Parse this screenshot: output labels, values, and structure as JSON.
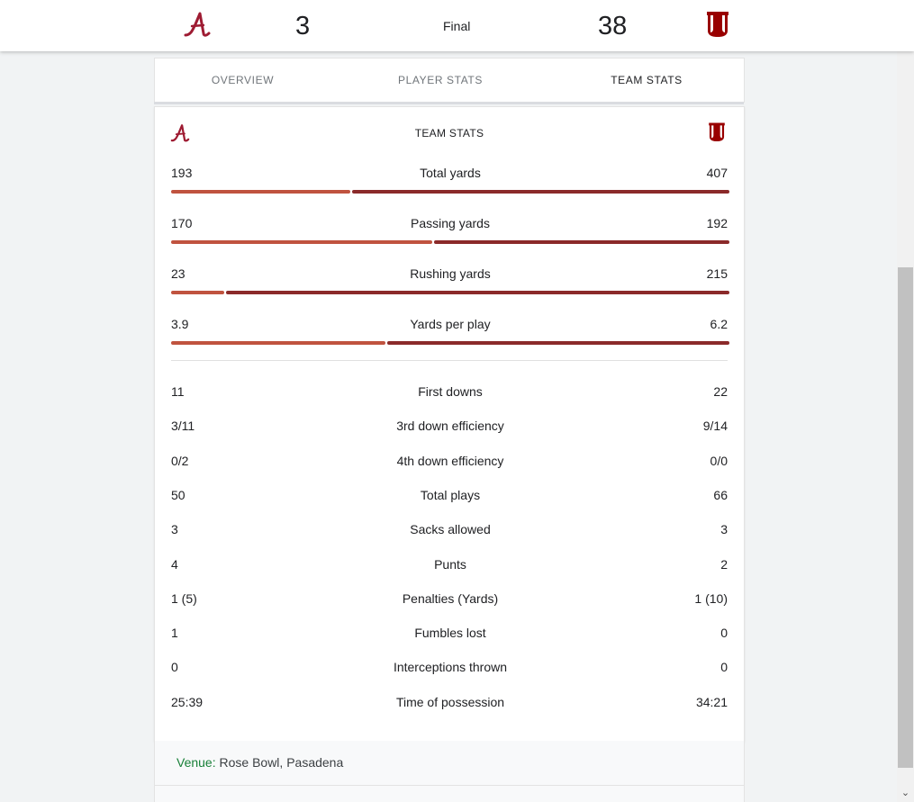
{
  "scoreboard": {
    "home_logo": "alabama-script-a-logo",
    "home_score": "3",
    "status": "Final",
    "away_score": "38",
    "away_logo": "indiana-iu-logo"
  },
  "tabs": [
    {
      "label": "OVERVIEW",
      "active": false
    },
    {
      "label": "PLAYER STATS",
      "active": false
    },
    {
      "label": "TEAM STATS",
      "active": true
    }
  ],
  "team_stats": {
    "heading": "TEAM STATS",
    "colors": {
      "left_team": "#c0533f",
      "right_team": "#8b2a2a",
      "logo_crimson": "#9e1b32",
      "iu_crimson": "#990000"
    },
    "bar_stats": [
      {
        "left": "193",
        "label": "Total yards",
        "right": "407",
        "left_share": 0.322
      },
      {
        "left": "170",
        "label": "Passing yards",
        "right": "192",
        "left_share": 0.47
      },
      {
        "left": "23",
        "label": "Rushing yards",
        "right": "215",
        "left_share": 0.097
      },
      {
        "left": "3.9",
        "label": "Yards per play",
        "right": "6.2",
        "left_share": 0.386
      }
    ],
    "stats": [
      {
        "left": "11",
        "label": "First downs",
        "right": "22"
      },
      {
        "left": "3/11",
        "label": "3rd down efficiency",
        "right": "9/14"
      },
      {
        "left": "0/2",
        "label": "4th down efficiency",
        "right": "0/0"
      },
      {
        "left": "50",
        "label": "Total plays",
        "right": "66"
      },
      {
        "left": "3",
        "label": "Sacks allowed",
        "right": "3"
      },
      {
        "left": "4",
        "label": "Punts",
        "right": "2"
      },
      {
        "left": "1 (5)",
        "label": "Penalties (Yards)",
        "right": "1 (10)"
      },
      {
        "left": "1",
        "label": "Fumbles lost",
        "right": "0"
      },
      {
        "left": "0",
        "label": "Interceptions thrown",
        "right": "0"
      },
      {
        "left": "25:39",
        "label": "Time of possession",
        "right": "34:21"
      }
    ]
  },
  "venue": {
    "label": "Venue:",
    "value": "Rose Bowl, Pasadena"
  }
}
